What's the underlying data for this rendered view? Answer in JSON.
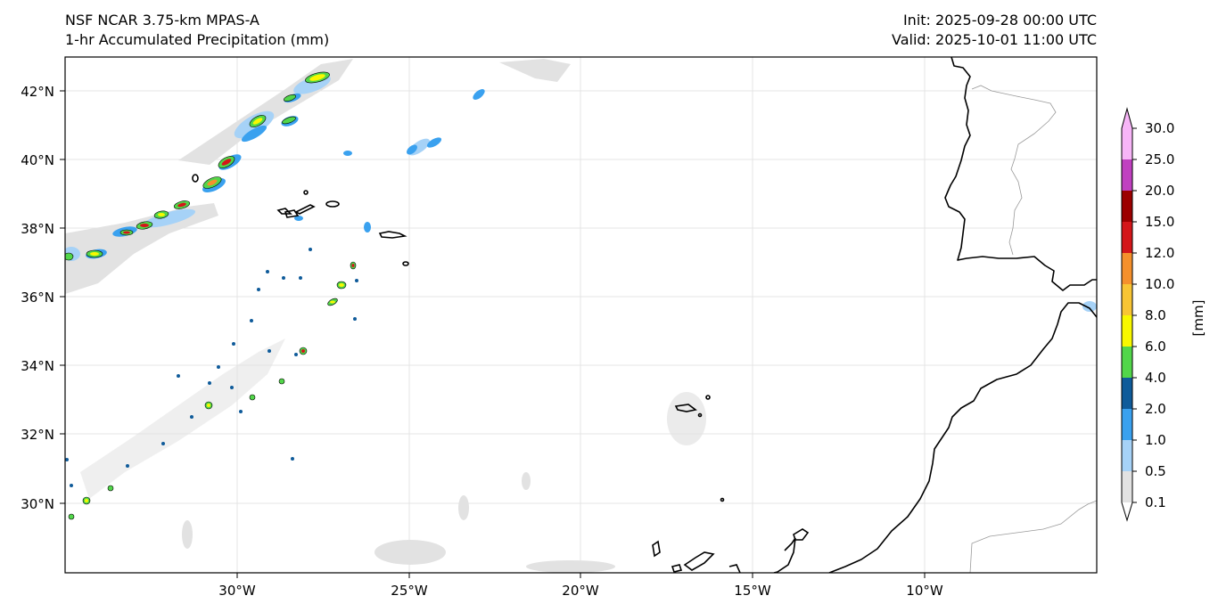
{
  "header": {
    "title_line1": "NSF NCAR 3.75-km MPAS-A",
    "title_line2": "1-hr Accumulated Precipitation (mm)",
    "init": "Init: 2025-09-28 00:00 UTC",
    "valid": "Valid: 2025-10-01 11:00 UTC"
  },
  "map": {
    "lon_ticks": [
      "30°W",
      "25°W",
      "20°W",
      "15°W",
      "10°W"
    ],
    "lat_ticks": [
      "42°N",
      "40°N",
      "38°N",
      "36°N",
      "34°N",
      "32°N",
      "30°N"
    ]
  },
  "colorbar": {
    "unit_label": "[mm]",
    "levels": [
      "0.1",
      "0.5",
      "1.0",
      "2.0",
      "4.0",
      "6.0",
      "8.0",
      "10.0",
      "12.0",
      "15.0",
      "20.0",
      "25.0",
      "30.0"
    ],
    "colors": [
      "#e2e2e2",
      "#a6d2f7",
      "#3aa1ef",
      "#0f5b9a",
      "#52d64a",
      "#f8f800",
      "#f8c534",
      "#f5902c",
      "#d4161a",
      "#9c0000",
      "#c040c0",
      "#f7b5f7"
    ]
  }
}
